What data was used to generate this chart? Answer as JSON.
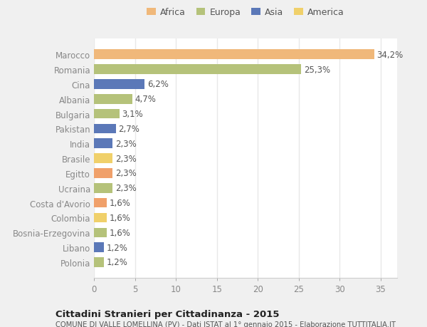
{
  "categories": [
    "Polonia",
    "Libano",
    "Bosnia-Erzegovina",
    "Colombia",
    "Costa d'Avorio",
    "Ucraina",
    "Egitto",
    "Brasile",
    "India",
    "Pakistan",
    "Bulgaria",
    "Albania",
    "Cina",
    "Romania",
    "Marocco"
  ],
  "values": [
    1.2,
    1.2,
    1.6,
    1.6,
    1.6,
    2.3,
    2.3,
    2.3,
    2.3,
    2.7,
    3.1,
    4.7,
    6.2,
    25.3,
    34.2
  ],
  "labels": [
    "1,2%",
    "1,2%",
    "1,6%",
    "1,6%",
    "1,6%",
    "2,3%",
    "2,3%",
    "2,3%",
    "2,3%",
    "2,7%",
    "3,1%",
    "4,7%",
    "6,2%",
    "25,3%",
    "34,2%"
  ],
  "colors": [
    "#b5c27a",
    "#5b78b8",
    "#b5c27a",
    "#f0d06a",
    "#f0a06a",
    "#b5c27a",
    "#f0a06a",
    "#f0d06a",
    "#5b78b8",
    "#5b78b8",
    "#b5c27a",
    "#b5c27a",
    "#5b78b8",
    "#b5c27a",
    "#f0b87a"
  ],
  "legend_labels": [
    "Africa",
    "Europa",
    "Asia",
    "America"
  ],
  "legend_colors": [
    "#f0b87a",
    "#b5c27a",
    "#5b78b8",
    "#f0d06a"
  ],
  "title": "Cittadini Stranieri per Cittadinanza - 2015",
  "subtitle": "COMUNE DI VALLE LOMELLINA (PV) - Dati ISTAT al 1° gennaio 2015 - Elaborazione TUTTITALIA.IT",
  "xlim": [
    0,
    37
  ],
  "xticks": [
    0,
    5,
    10,
    15,
    20,
    25,
    30,
    35
  ],
  "bar_height": 0.65,
  "fig_bg_color": "#f0f0f0",
  "plot_bg_color": "#ffffff",
  "grid_color": "#e8e8e8",
  "label_fontsize": 8.5,
  "tick_fontsize": 8.5,
  "label_color": "#555555",
  "tick_color": "#888888"
}
